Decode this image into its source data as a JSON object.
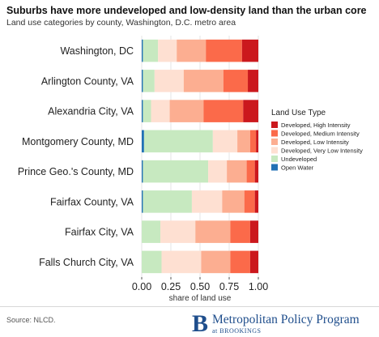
{
  "header": {
    "title": "Suburbs have more undeveloped and low-density land than the urban core",
    "subtitle": "Land use categories by county, Washington, D.C. metro area"
  },
  "footer": {
    "source": "Source: NLCD.",
    "logo_letter": "B",
    "org_name": "Metropolitan Policy Program",
    "org_sub": "at BROOKINGS"
  },
  "chart_data": {
    "type": "bar",
    "orientation": "horizontal",
    "stacked": true,
    "categories": [
      "Washington, DC",
      "Arlington County, VA",
      "Alexandria City, VA",
      "Montgomery County, MD",
      "Prince Geo.'s County, MD",
      "Fairfax County, VA",
      "Fairfax City, VA",
      "Falls Church City, VA"
    ],
    "series": [
      {
        "name": "Open Water",
        "color": "#2171b5",
        "values": [
          0.01,
          0.01,
          0.01,
          0.02,
          0.01,
          0.01,
          0.0,
          0.0
        ]
      },
      {
        "name": "Undeveloped",
        "color": "#c7e9c0",
        "values": [
          0.13,
          0.1,
          0.07,
          0.59,
          0.56,
          0.42,
          0.16,
          0.17
        ]
      },
      {
        "name": "Developed, Very Low Intensity",
        "color": "#fee0d2",
        "values": [
          0.16,
          0.25,
          0.16,
          0.21,
          0.16,
          0.26,
          0.3,
          0.34
        ]
      },
      {
        "name": "Developed, Low Intensity",
        "color": "#fcae91",
        "values": [
          0.25,
          0.34,
          0.29,
          0.11,
          0.17,
          0.19,
          0.3,
          0.25
        ]
      },
      {
        "name": "Developed, Medium Intensity",
        "color": "#fb6a4a",
        "values": [
          0.31,
          0.21,
          0.34,
          0.05,
          0.07,
          0.09,
          0.17,
          0.17
        ]
      },
      {
        "name": "Developed, High Intensity",
        "color": "#cb181d",
        "values": [
          0.14,
          0.09,
          0.13,
          0.02,
          0.03,
          0.03,
          0.07,
          0.07
        ]
      }
    ],
    "legend_order": [
      "Developed, High Intensity",
      "Developed, Medium Intensity",
      "Developed, Low Intensity",
      "Developed, Very Low Intensity",
      "Undeveloped",
      "Open Water"
    ],
    "legend_title": "Land Use Type",
    "legend_position": "right",
    "xlabel": "share of land use",
    "ylabel": "",
    "xlim": [
      0,
      1
    ],
    "xticks": [
      "0.00",
      "0.25",
      "0.50",
      "0.75",
      "1.00"
    ],
    "grid": true
  }
}
